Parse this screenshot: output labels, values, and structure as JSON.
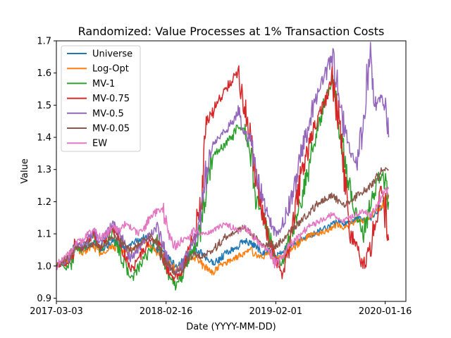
{
  "chart_data": {
    "type": "line",
    "title": "Randomized: Value Processes at 1% Transaction Costs",
    "xlabel": "Date (YYYY-MM-DD)",
    "ylabel": "Value",
    "xlim": [
      0,
      1115
    ],
    "ylim": [
      0.89,
      1.7
    ],
    "x_ticks": [
      {
        "value": 0,
        "label": "2017-03-03"
      },
      {
        "value": 350,
        "label": "2018-02-16"
      },
      {
        "value": 700,
        "label": "2019-02-01"
      },
      {
        "value": 1049,
        "label": "2020-01-16"
      }
    ],
    "y_ticks": [
      0.9,
      1.0,
      1.1,
      1.2,
      1.3,
      1.4,
      1.5,
      1.6,
      1.7
    ],
    "y_tick_labels": [
      "0.9",
      "1.0",
      "1.1",
      "1.2",
      "1.3",
      "1.4",
      "1.5",
      "1.6",
      "1.7"
    ],
    "grid": false,
    "legend_position": "top-left",
    "series": [
      {
        "name": "Universe",
        "color": "#1f77b4",
        "x": [
          0,
          20,
          40,
          60,
          80,
          100,
          120,
          140,
          160,
          180,
          200,
          220,
          240,
          260,
          280,
          300,
          320,
          340,
          360,
          380,
          400,
          420,
          440,
          460,
          480,
          500,
          520,
          540,
          560,
          580,
          600,
          620,
          640,
          660,
          680,
          700,
          720,
          740,
          760,
          780,
          800,
          820,
          840,
          860,
          880,
          900,
          920,
          940,
          960,
          980,
          1000,
          1020,
          1040,
          1060
        ],
        "y": [
          1.0,
          1.01,
          1.03,
          1.06,
          1.05,
          1.06,
          1.07,
          1.05,
          1.06,
          1.08,
          1.07,
          1.05,
          1.07,
          1.08,
          1.09,
          1.08,
          1.05,
          1.04,
          1.02,
          1.0,
          1.01,
          1.03,
          1.05,
          1.04,
          1.02,
          1.01,
          1.02,
          1.04,
          1.05,
          1.06,
          1.08,
          1.07,
          1.06,
          1.04,
          1.05,
          1.03,
          1.04,
          1.06,
          1.07,
          1.08,
          1.09,
          1.1,
          1.11,
          1.12,
          1.13,
          1.14,
          1.13,
          1.14,
          1.15,
          1.14,
          1.15,
          1.17,
          1.19,
          1.22
        ]
      },
      {
        "name": "Log-Opt",
        "color": "#ff7f0e",
        "x": [
          0,
          20,
          40,
          60,
          80,
          100,
          120,
          140,
          160,
          180,
          200,
          220,
          240,
          260,
          280,
          300,
          320,
          340,
          360,
          380,
          400,
          420,
          440,
          460,
          480,
          500,
          520,
          540,
          560,
          580,
          600,
          620,
          640,
          660,
          680,
          700,
          720,
          740,
          760,
          780,
          800,
          820,
          840,
          860,
          880,
          900,
          920,
          940,
          960,
          980,
          1000,
          1020,
          1040,
          1060
        ],
        "y": [
          1.0,
          1.01,
          1.02,
          1.05,
          1.04,
          1.05,
          1.06,
          1.04,
          1.04,
          1.06,
          1.05,
          1.04,
          1.05,
          1.06,
          1.07,
          1.06,
          1.04,
          1.03,
          1.01,
          0.99,
          1.0,
          1.02,
          1.03,
          1.01,
          0.99,
          0.98,
          1.0,
          1.01,
          1.02,
          1.03,
          1.04,
          1.05,
          1.03,
          1.03,
          1.04,
          1.02,
          1.03,
          1.05,
          1.06,
          1.08,
          1.09,
          1.1,
          1.1,
          1.11,
          1.12,
          1.13,
          1.12,
          1.13,
          1.14,
          1.14,
          1.15,
          1.17,
          1.19,
          1.22
        ]
      },
      {
        "name": "MV-1",
        "color": "#2ca02c",
        "x": [
          0,
          20,
          40,
          60,
          80,
          100,
          120,
          140,
          160,
          180,
          200,
          220,
          240,
          260,
          280,
          300,
          320,
          340,
          360,
          380,
          400,
          420,
          440,
          460,
          480,
          500,
          520,
          540,
          560,
          580,
          600,
          620,
          640,
          660,
          680,
          700,
          720,
          740,
          760,
          780,
          800,
          820,
          840,
          860,
          880,
          900,
          920,
          940,
          960,
          980,
          1000,
          1020,
          1040,
          1060
        ],
        "y": [
          1.0,
          1.0,
          0.99,
          1.06,
          1.05,
          1.07,
          1.1,
          1.05,
          1.08,
          1.1,
          1.05,
          1.0,
          0.96,
          0.99,
          1.02,
          1.05,
          1.08,
          1.03,
          0.97,
          0.94,
          0.97,
          1.02,
          1.05,
          1.12,
          1.25,
          1.35,
          1.36,
          1.38,
          1.4,
          1.43,
          1.42,
          1.35,
          1.2,
          1.15,
          1.1,
          1.02,
          1.0,
          1.08,
          1.12,
          1.2,
          1.28,
          1.38,
          1.45,
          1.52,
          1.57,
          1.45,
          1.32,
          1.22,
          1.15,
          1.1,
          1.18,
          1.25,
          1.3,
          1.2
        ]
      },
      {
        "name": "MV-0.75",
        "color": "#d62728",
        "x": [
          0,
          20,
          40,
          60,
          80,
          100,
          120,
          140,
          160,
          180,
          200,
          220,
          240,
          260,
          280,
          300,
          320,
          340,
          360,
          380,
          400,
          420,
          440,
          460,
          480,
          500,
          520,
          540,
          560,
          580,
          600,
          620,
          640,
          660,
          680,
          700,
          720,
          740,
          760,
          780,
          800,
          820,
          840,
          860,
          880,
          900,
          920,
          940,
          960,
          980,
          1000,
          1020,
          1040,
          1060
        ],
        "y": [
          1.0,
          1.01,
          1.0,
          1.07,
          1.06,
          1.08,
          1.1,
          1.06,
          1.09,
          1.12,
          1.08,
          1.03,
          0.99,
          1.02,
          1.05,
          1.08,
          1.08,
          1.03,
          0.98,
          0.96,
          0.99,
          1.04,
          1.1,
          1.2,
          1.45,
          1.48,
          1.52,
          1.55,
          1.58,
          1.6,
          1.5,
          1.4,
          1.25,
          1.15,
          1.08,
          1.02,
          0.98,
          1.05,
          1.15,
          1.28,
          1.35,
          1.42,
          1.48,
          1.52,
          1.58,
          1.45,
          1.25,
          1.1,
          1.05,
          1.0,
          1.05,
          1.15,
          1.25,
          1.08
        ]
      },
      {
        "name": "MV-0.5",
        "color": "#9467bd",
        "x": [
          0,
          20,
          40,
          60,
          80,
          100,
          120,
          140,
          160,
          180,
          200,
          220,
          240,
          260,
          280,
          300,
          320,
          340,
          360,
          380,
          400,
          420,
          440,
          460,
          480,
          500,
          520,
          540,
          560,
          580,
          600,
          620,
          640,
          660,
          680,
          700,
          720,
          740,
          760,
          780,
          800,
          820,
          840,
          860,
          880,
          900,
          920,
          940,
          960,
          980,
          1000,
          1020,
          1040,
          1060
        ],
        "y": [
          1.0,
          1.01,
          1.02,
          1.07,
          1.06,
          1.08,
          1.11,
          1.07,
          1.1,
          1.13,
          1.1,
          1.06,
          1.02,
          1.05,
          1.08,
          1.1,
          1.12,
          1.06,
          1.0,
          0.98,
          1.0,
          1.05,
          1.08,
          1.15,
          1.3,
          1.38,
          1.4,
          1.42,
          1.45,
          1.48,
          1.42,
          1.38,
          1.28,
          1.2,
          1.14,
          1.1,
          1.12,
          1.18,
          1.25,
          1.35,
          1.42,
          1.5,
          1.55,
          1.6,
          1.66,
          1.55,
          1.42,
          1.35,
          1.32,
          1.45,
          1.66,
          1.5,
          1.54,
          1.4
        ]
      },
      {
        "name": "MV-0.05",
        "color": "#8c564b",
        "x": [
          0,
          20,
          40,
          60,
          80,
          100,
          120,
          140,
          160,
          180,
          200,
          220,
          240,
          260,
          280,
          300,
          320,
          340,
          360,
          380,
          400,
          420,
          440,
          460,
          480,
          500,
          520,
          540,
          560,
          580,
          600,
          620,
          640,
          660,
          680,
          700,
          720,
          740,
          760,
          780,
          800,
          820,
          840,
          860,
          880,
          900,
          920,
          940,
          960,
          980,
          1000,
          1020,
          1040,
          1060
        ],
        "y": [
          1.0,
          1.01,
          1.03,
          1.06,
          1.05,
          1.06,
          1.07,
          1.06,
          1.07,
          1.09,
          1.08,
          1.06,
          1.05,
          1.07,
          1.08,
          1.09,
          1.07,
          1.02,
          1.0,
          0.98,
          0.99,
          1.02,
          1.04,
          1.03,
          1.04,
          1.05,
          1.07,
          1.09,
          1.1,
          1.11,
          1.12,
          1.1,
          1.08,
          1.06,
          1.07,
          1.06,
          1.08,
          1.1,
          1.12,
          1.14,
          1.16,
          1.18,
          1.2,
          1.21,
          1.22,
          1.2,
          1.19,
          1.2,
          1.22,
          1.23,
          1.25,
          1.27,
          1.3,
          1.3
        ]
      },
      {
        "name": "EW",
        "color": "#e377c2",
        "x": [
          0,
          20,
          40,
          60,
          80,
          100,
          120,
          140,
          160,
          180,
          200,
          220,
          240,
          260,
          280,
          300,
          320,
          340,
          360,
          380,
          400,
          420,
          440,
          460,
          480,
          500,
          520,
          540,
          560,
          580,
          600,
          620,
          640,
          660,
          680,
          700,
          720,
          740,
          760,
          780,
          800,
          820,
          840,
          860,
          880,
          900,
          920,
          940,
          960,
          980,
          1000,
          1020,
          1040,
          1060
        ],
        "y": [
          1.0,
          1.02,
          1.04,
          1.07,
          1.08,
          1.1,
          1.11,
          1.09,
          1.1,
          1.12,
          1.11,
          1.13,
          1.12,
          1.1,
          1.12,
          1.15,
          1.17,
          1.18,
          1.1,
          1.06,
          1.08,
          1.09,
          1.11,
          1.1,
          1.1,
          1.11,
          1.12,
          1.13,
          1.12,
          1.11,
          1.12,
          1.1,
          1.08,
          1.06,
          1.05,
          1.0,
          1.03,
          1.06,
          1.08,
          1.1,
          1.12,
          1.13,
          1.14,
          1.15,
          1.16,
          1.15,
          1.14,
          1.15,
          1.16,
          1.17,
          1.16,
          1.19,
          1.22,
          1.24
        ]
      }
    ]
  }
}
